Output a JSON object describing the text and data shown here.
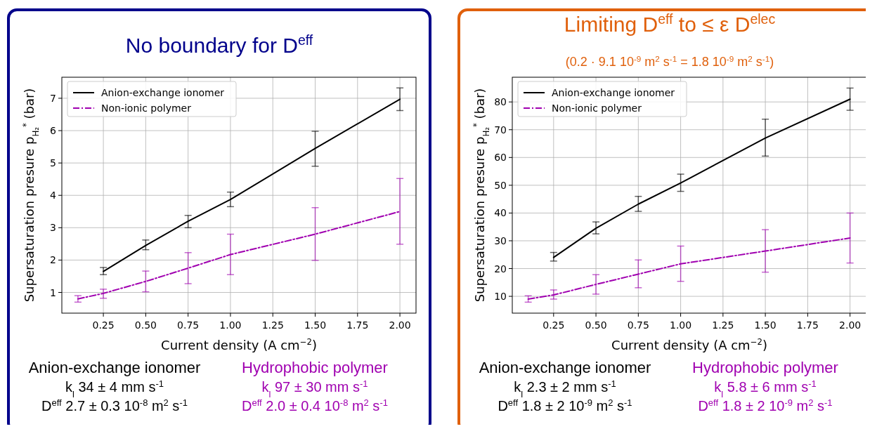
{
  "chart_data": [
    {
      "type": "line",
      "title": "No boundary for D$^{eff}$",
      "xlabel": "Current density (A cm$^{−2}$)",
      "ylabel": "Supersaturation presure p$_{H₂}$$^{*}$ (bar)",
      "xlim": [
        0.005,
        2.095
      ],
      "xticks": [
        {
          "value": 0.25,
          "label": "0.25"
        },
        {
          "value": 0.5,
          "label": "0.50"
        },
        {
          "value": 0.75,
          "label": "0.75"
        },
        {
          "value": 1,
          "label": "1.00"
        },
        {
          "value": 1.25,
          "label": "1.25"
        },
        {
          "value": 1.5,
          "label": "1.50"
        },
        {
          "value": 1.75,
          "label": "1.75"
        },
        {
          "value": 2,
          "label": "2.00"
        }
      ],
      "ylim": [
        0.36,
        7.65
      ],
      "yticks": [
        1,
        2,
        3,
        4,
        5,
        6,
        7
      ],
      "grid": true,
      "legend": "top left",
      "marker": "none",
      "series": [
        {
          "name": "Anion-exchange ionomer",
          "color": "#000000",
          "line_style": "solid",
          "x": [
            0.25,
            0.5,
            0.75,
            1,
            1.5,
            2
          ],
          "values": [
            1.65,
            2.45,
            3.2,
            3.87,
            5.45,
            6.97
          ],
          "errors": [
            [
              1.55,
              1.77
            ],
            [
              2.32,
              2.62
            ],
            [
              3.0,
              3.38
            ],
            [
              3.65,
              4.1
            ],
            [
              4.9,
              5.98
            ],
            [
              6.62,
              7.32
            ]
          ]
        },
        {
          "name": "Non-ionic polymer",
          "color": "#a000b0",
          "line_style": "dashed",
          "x": [
            0.1,
            0.25,
            0.5,
            0.75,
            1,
            1.5,
            2
          ],
          "values": [
            0.8,
            0.97,
            1.34,
            1.75,
            2.17,
            2.8,
            3.5
          ],
          "errors": [
            [
              0.7,
              0.9
            ],
            [
              0.82,
              1.1
            ],
            [
              1.02,
              1.66
            ],
            [
              1.27,
              2.23
            ],
            [
              1.55,
              2.8
            ],
            [
              1.99,
              3.62
            ],
            [
              2.49,
              4.52
            ]
          ]
        }
      ],
      "annotations": [
        "Anion-exchange ionomer",
        "k$_{l}$   34 ± 4 mm s$^{-1}$",
        "D$^{eff}$   2.7 ± 0.3 10$^{-8}$ m$^{2}$ s$^{-1}$",
        "Hydrophobic polymer",
        "k$_{l}$   97 ± 30 mm s$^{-1}$",
        "D$^{eff}$   2.0 ± 0.4 10$^{-8}$ m$^{2}$ s$^{-1}$"
      ]
    },
    {
      "type": "line",
      "title": "Limiting D$^{eff}$ to ≤ ε D$^{elec}$",
      "subtitle": "(0.2 · 9.1 10$^{-9}$ m$^{2}$ s$^{-1}$ = 1.8 10$^{-9}$ m$^{2}$ s$^{-1}$)",
      "xlabel": "Current density (A cm$^{−2}$)",
      "ylabel": "Supersaturation presure p$_{H₂}$$^{*}$ (bar)",
      "xlim": [
        0.006,
        2.097
      ],
      "xticks": [
        {
          "value": 0.25,
          "label": "0.25"
        },
        {
          "value": 0.5,
          "label": "0.50"
        },
        {
          "value": 0.75,
          "label": "0.75"
        },
        {
          "value": 1,
          "label": "1.00"
        },
        {
          "value": 1.25,
          "label": "1.25"
        },
        {
          "value": 1.5,
          "label": "1.50"
        },
        {
          "value": 1.75,
          "label": "1.75"
        },
        {
          "value": 2,
          "label": "2.00"
        }
      ],
      "ylim": [
        3.95,
        88.9
      ],
      "yticks": [
        10,
        20,
        30,
        40,
        50,
        60,
        70,
        80
      ],
      "grid": true,
      "legend": "top left",
      "marker": "none",
      "series": [
        {
          "name": "Anion-exchange ionomer",
          "color": "#000000",
          "line_style": "solid",
          "x": [
            0.25,
            0.5,
            0.75,
            1,
            1.5,
            2
          ],
          "values": [
            24,
            34.5,
            43.2,
            50.8,
            67,
            81
          ],
          "errors": [
            [
              22.7,
              25.8
            ],
            [
              32.5,
              36.8
            ],
            [
              40.6,
              46
            ],
            [
              47.8,
              54
            ],
            [
              60.5,
              73.8
            ],
            [
              77,
              85
            ]
          ]
        },
        {
          "name": "Non-ionic polymer",
          "color": "#a000b0",
          "line_style": "dashed",
          "x": [
            0.1,
            0.25,
            0.5,
            0.75,
            1,
            1.5,
            2
          ],
          "values": [
            9,
            10.5,
            14.3,
            18,
            21.7,
            26.3,
            31
          ],
          "errors": [
            [
              7.9,
              10.2
            ],
            [
              9,
              12.3
            ],
            [
              10.8,
              17.8
            ],
            [
              13.1,
              23.1
            ],
            [
              15.4,
              28.1
            ],
            [
              18.7,
              34
            ],
            [
              22,
              40
            ]
          ]
        }
      ],
      "annotations": [
        "Anion-exchange ionomer",
        "k$_{l}$   2.3 ± 2 mm s$^{-1}$",
        "D$^{eff}$   1.8 ± 2 10$^{-9}$ m$^{2}$ s$^{-1}$",
        "Hydrophobic polymer",
        "k$_{l}$   5.8 ± 6 mm s$^{-1}$",
        "D$^{eff}$   1.8 ± 2 10$^{-9}$ m$^{2}$ s$^{-1}$"
      ]
    }
  ]
}
